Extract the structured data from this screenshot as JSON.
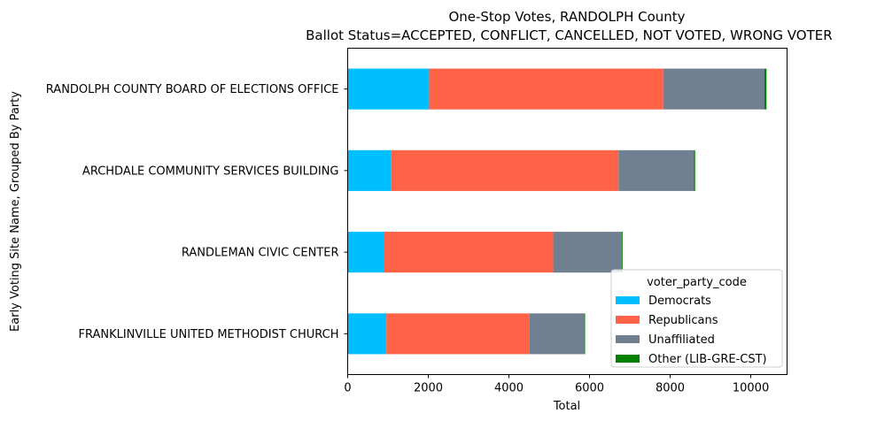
{
  "chart_data": {
    "type": "bar",
    "orientation": "horizontal",
    "stacked": true,
    "title": "One-Stop Votes, RANDOLPH County",
    "subtitle": " Ballot Status=ACCEPTED, CONFLICT, CANCELLED, NOT VOTED, WRONG VOTER",
    "xlabel": "Total",
    "ylabel": "Early Voting Site Name, Grouped By Party",
    "xlim": [
      0,
      10900
    ],
    "xticks": [
      0,
      2000,
      4000,
      6000,
      8000,
      10000
    ],
    "grid": false,
    "legend": {
      "title": "voter_party_code",
      "placement": "lower right"
    },
    "categories": [
      "RANDOLPH COUNTY BOARD OF ELECTIONS OFFICE",
      "ARCHDALE COMMUNITY SERVICES BUILDING",
      "RANDLEMAN CIVIC CENTER",
      "FRANKLINVILLE UNITED METHODIST CHURCH"
    ],
    "series": [
      {
        "name": "Democrats",
        "color": "#00bfff",
        "values": [
          2020,
          1070,
          900,
          960
        ]
      },
      {
        "name": "Republicans",
        "color": "#ff6347",
        "values": [
          5810,
          5650,
          4200,
          3550
        ]
      },
      {
        "name": "Unaffiliated",
        "color": "#708090",
        "values": [
          2510,
          1870,
          1700,
          1360
        ]
      },
      {
        "name": "Other (LIB-GRE-CST)",
        "color": "#008000",
        "values": [
          50,
          30,
          20,
          20
        ]
      }
    ]
  }
}
